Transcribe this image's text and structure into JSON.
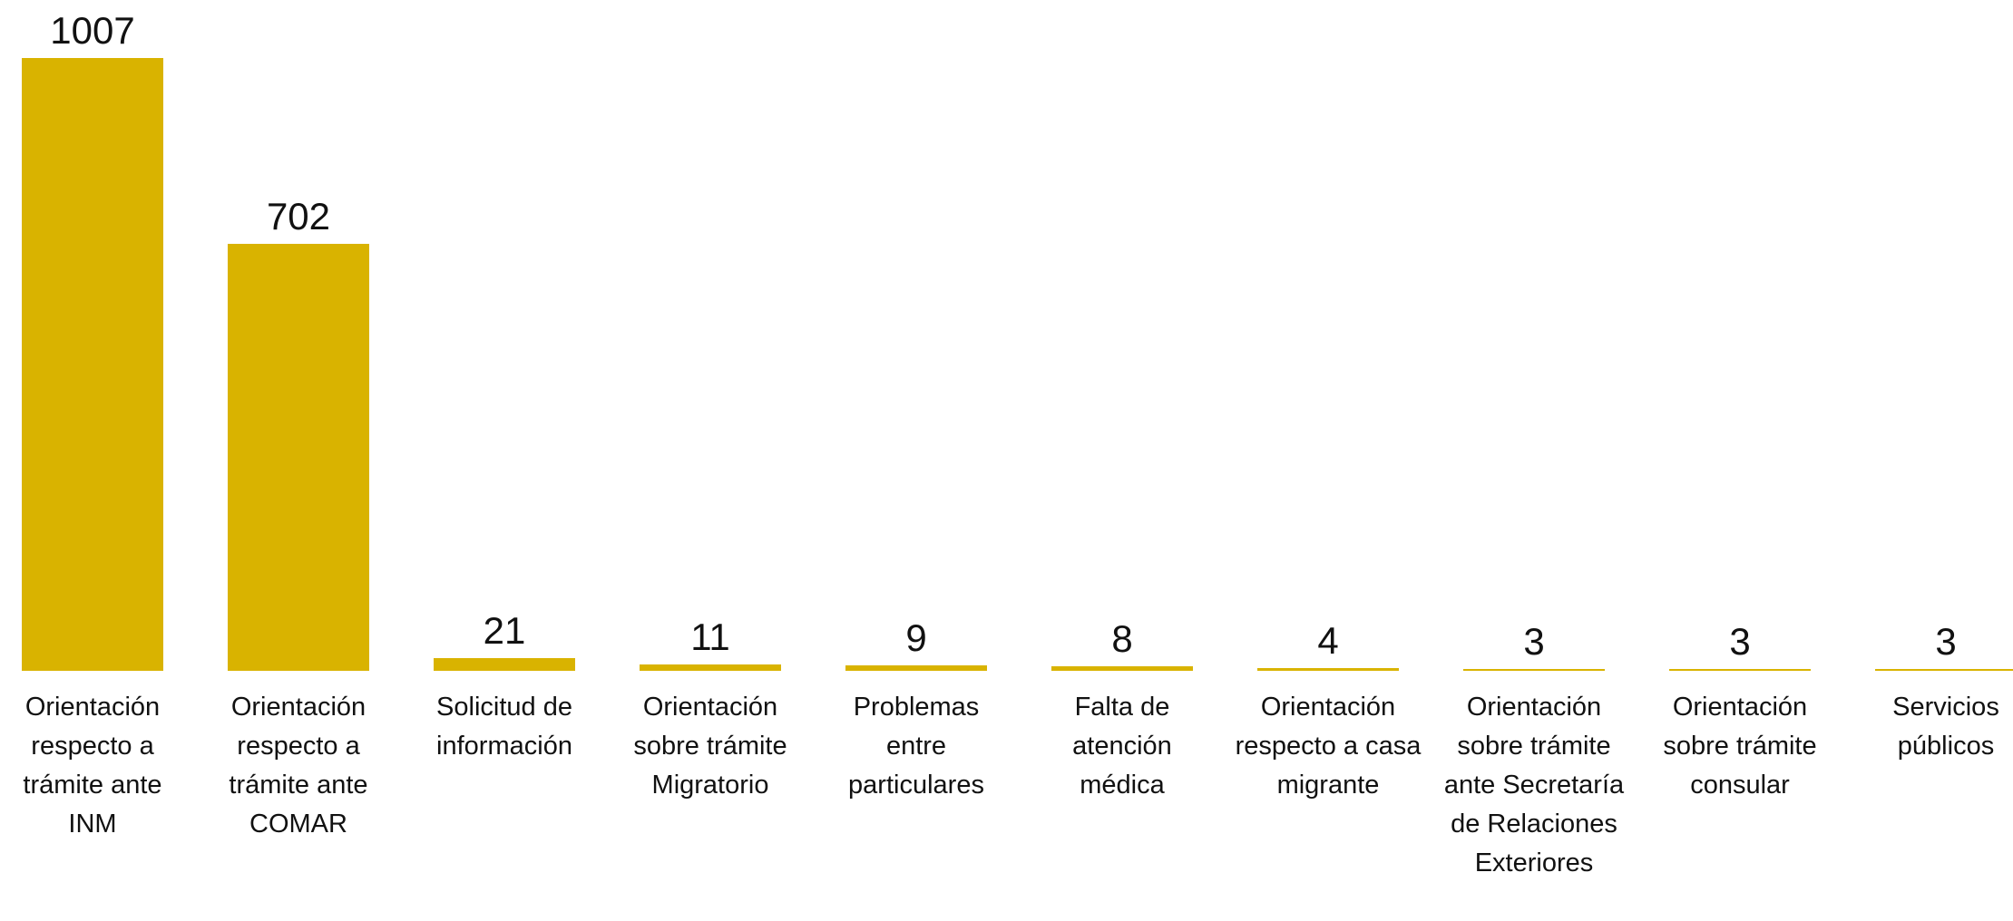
{
  "chart_data": {
    "type": "bar",
    "categories": [
      "Orientación respecto a trámite ante INM",
      "Orientación respecto a trámite ante COMAR",
      "Solicitud de información",
      "Orientación sobre trámite Migratorio",
      "Problemas entre particulares",
      "Falta de atención médica",
      "Orientación respecto a casa migrante",
      "Orientación sobre trámite ante Secretaría de Relaciones Exteriores",
      "Orientación sobre trámite consular",
      "Servicios públicos"
    ],
    "values": [
      1007,
      702,
      21,
      11,
      9,
      8,
      4,
      3,
      3,
      3
    ],
    "color": "#d9b300"
  }
}
